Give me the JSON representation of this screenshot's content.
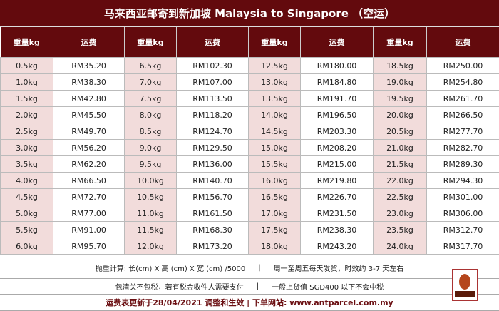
{
  "title": "马来西亚邮寄到新加坡  Malaysia to Singapore （空运）",
  "headers": {
    "weight": "重量kg",
    "price": "运费"
  },
  "rows": [
    [
      "0.5kg",
      "RM35.20",
      "6.5kg",
      "RM102.30",
      "12.5kg",
      "RM180.00",
      "18.5kg",
      "RM250.00"
    ],
    [
      "1.0kg",
      "RM38.30",
      "7.0kg",
      "RM107.00",
      "13.0kg",
      "RM184.80",
      "19.0kg",
      "RM254.80"
    ],
    [
      "1.5kg",
      "RM42.80",
      "7.5kg",
      "RM113.50",
      "13.5kg",
      "RM191.70",
      "19.5kg",
      "RM261.70"
    ],
    [
      "2.0kg",
      "RM45.50",
      "8.0kg",
      "RM118.20",
      "14.0kg",
      "RM196.50",
      "20.0kg",
      "RM266.50"
    ],
    [
      "2.5kg",
      "RM49.70",
      "8.5kg",
      "RM124.70",
      "14.5kg",
      "RM203.30",
      "20.5kg",
      "RM277.70"
    ],
    [
      "3.0kg",
      "RM56.20",
      "9.0kg",
      "RM129.50",
      "15.0kg",
      "RM208.20",
      "21.0kg",
      "RM282.70"
    ],
    [
      "3.5kg",
      "RM62.20",
      "9.5kg",
      "RM136.00",
      "15.5kg",
      "RM215.00",
      "21.5kg",
      "RM289.30"
    ],
    [
      "4.0kg",
      "RM66.50",
      "10.0kg",
      "RM140.70",
      "16.0kg",
      "RM219.80",
      "22.0kg",
      "RM294.30"
    ],
    [
      "4.5kg",
      "RM72.70",
      "10.5kg",
      "RM156.70",
      "16.5kg",
      "RM226.70",
      "22.5kg",
      "RM301.00"
    ],
    [
      "5.0kg",
      "RM77.00",
      "11.0kg",
      "RM161.50",
      "17.0kg",
      "RM231.50",
      "23.0kg",
      "RM306.00"
    ],
    [
      "5.5kg",
      "RM91.00",
      "11.5kg",
      "RM168.30",
      "17.5kg",
      "RM238.30",
      "23.5kg",
      "RM312.70"
    ],
    [
      "6.0kg",
      "RM95.70",
      "12.0kg",
      "RM173.20",
      "18.0kg",
      "RM243.20",
      "24.0kg",
      "RM317.70"
    ]
  ],
  "footer": {
    "line1a": "抛重计算:  长(cm) X 高 (cm)  X 宽 (cm) /5000",
    "line1b": "周一至周五每天发货，时效约 3-7 天左右",
    "line2a": "包清关不包税，若有税金收件人需要支付",
    "line2b": "一般上货值 SGD400 以下不会中税",
    "line3": "运费表更新于28/04/2021 调整和生效  |  下单网站:  www.antparcel.com.my",
    "separator": "|"
  },
  "logo_text": "ANT PARCEL",
  "colors": {
    "header_bg": "#630a0d",
    "weight_cell_bg": "#f2dcdb"
  }
}
